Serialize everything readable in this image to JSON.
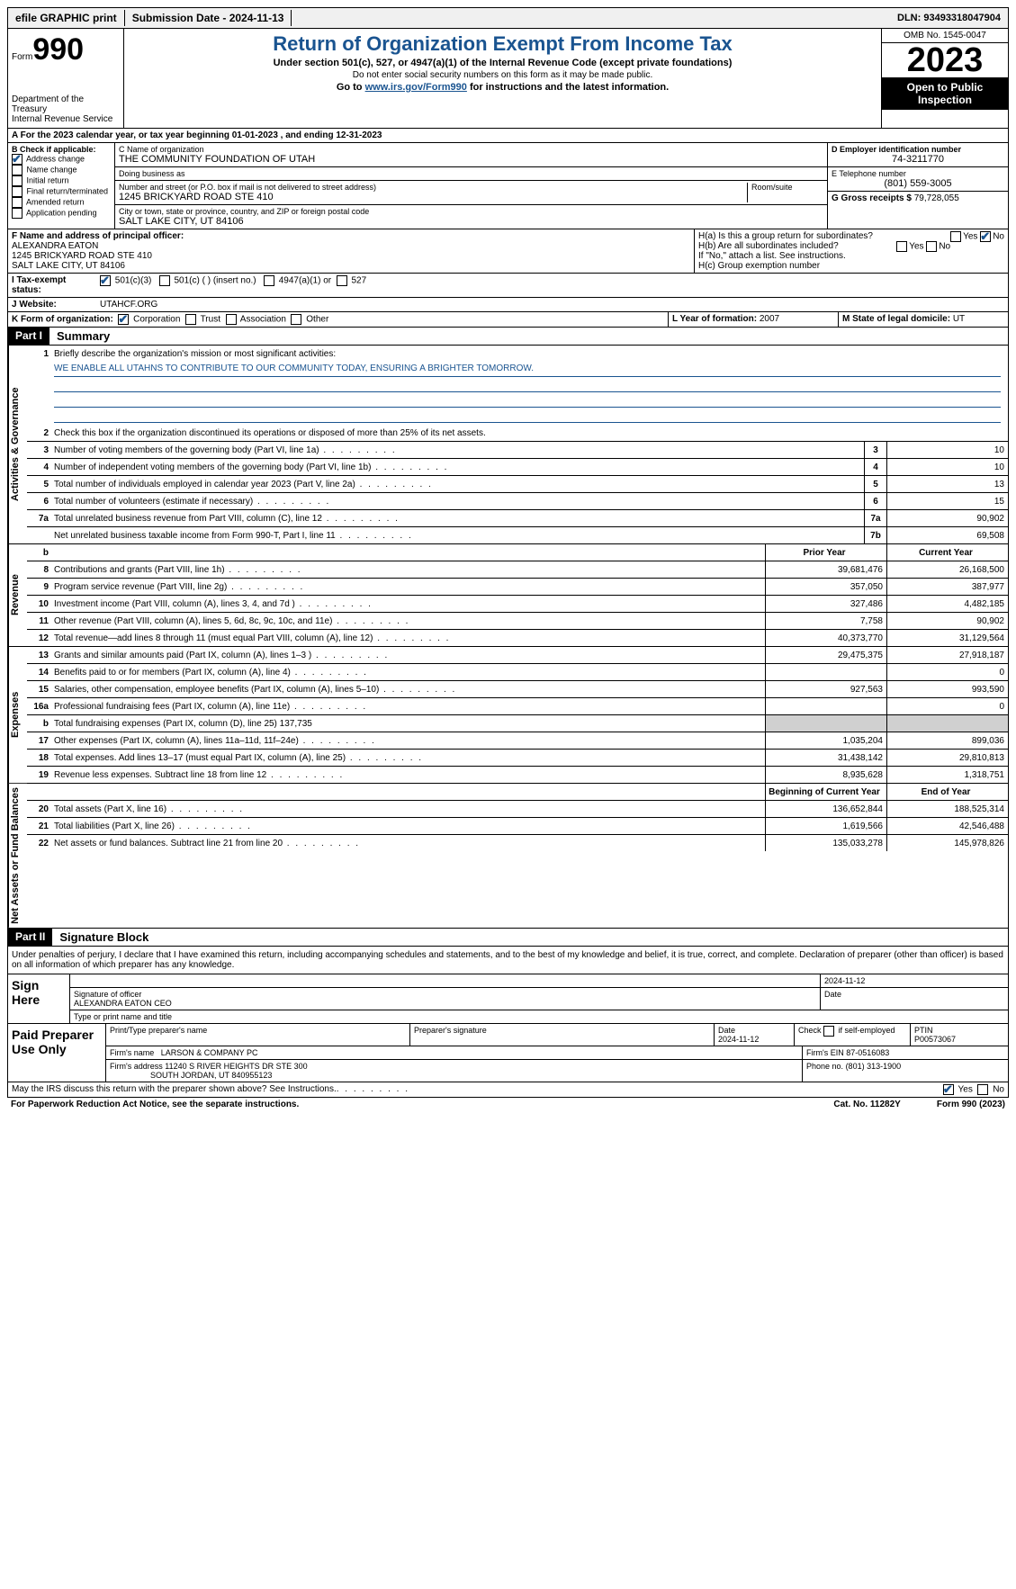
{
  "topbar": {
    "efile": "efile GRAPHIC print",
    "submission": "Submission Date - 2024-11-13",
    "dln": "DLN: 93493318047904"
  },
  "header": {
    "form_label": "Form",
    "form_number": "990",
    "dept": "Department of the Treasury",
    "irs": "Internal Revenue Service",
    "title": "Return of Organization Exempt From Income Tax",
    "sub1": "Under section 501(c), 527, or 4947(a)(1) of the Internal Revenue Code (except private foundations)",
    "sub2": "Do not enter social security numbers on this form as it may be made public.",
    "sub3_pre": "Go to ",
    "sub3_link": "www.irs.gov/Form990",
    "sub3_post": " for instructions and the latest information.",
    "omb": "OMB No. 1545-0047",
    "year": "2023",
    "open": "Open to Public Inspection"
  },
  "line_a": "For the 2023 calendar year, or tax year beginning 01-01-2023   , and ending 12-31-2023",
  "section_b": {
    "label": "B Check if applicable:",
    "items": [
      "Address change",
      "Name change",
      "Initial return",
      "Final return/terminated",
      "Amended return",
      "Application pending"
    ],
    "checked": [
      true,
      false,
      false,
      false,
      false,
      false
    ]
  },
  "section_c": {
    "name_label": "C Name of organization",
    "name": "THE COMMUNITY FOUNDATION OF UTAH",
    "dba_label": "Doing business as",
    "dba": "",
    "street_label": "Number and street (or P.O. box if mail is not delivered to street address)",
    "street": "1245 BRICKYARD ROAD STE 410",
    "room_label": "Room/suite",
    "city_label": "City or town, state or province, country, and ZIP or foreign postal code",
    "city": "SALT LAKE CITY, UT  84106"
  },
  "section_d": {
    "ein_label": "D Employer identification number",
    "ein": "74-3211770",
    "phone_label": "E Telephone number",
    "phone": "(801) 559-3005",
    "gross_label": "G Gross receipts $",
    "gross": "79,728,055"
  },
  "section_f": {
    "label": "F  Name and address of principal officer:",
    "name": "ALEXANDRA EATON",
    "addr1": "1245 BRICKYARD ROAD STE 410",
    "addr2": "SALT LAKE CITY, UT  84106"
  },
  "section_h": {
    "ha": "H(a)  Is this a group return for subordinates?",
    "hb": "H(b)  Are all subordinates included?",
    "hb_note": "If \"No,\" attach a list. See instructions.",
    "hc": "H(c)  Group exemption number"
  },
  "section_i": {
    "label": "I   Tax-exempt status:",
    "opts": [
      "501(c)(3)",
      "501(c) (  ) (insert no.)",
      "4947(a)(1) or",
      "527"
    ]
  },
  "section_j": {
    "label": "J   Website:",
    "value": "UTAHCF.ORG"
  },
  "section_k": {
    "label": "K Form of organization:",
    "opts": [
      "Corporation",
      "Trust",
      "Association",
      "Other"
    ]
  },
  "section_l": {
    "label": "L Year of formation:",
    "value": "2007"
  },
  "section_m": {
    "label": "M State of legal domicile:",
    "value": "UT"
  },
  "part1": {
    "label": "Part I",
    "title": "Summary",
    "mission_label": "Briefly describe the organization's mission or most significant activities:",
    "mission": "WE ENABLE ALL UTAHNS TO CONTRIBUTE TO OUR COMMUNITY TODAY, ENSURING A BRIGHTER TOMORROW.",
    "line2": "Check this box       if the organization discontinued its operations or disposed of more than 25% of its net assets.",
    "governance_label": "Activities & Governance",
    "revenue_label": "Revenue",
    "expenses_label": "Expenses",
    "netassets_label": "Net Assets or Fund Balances",
    "rows_gov": [
      {
        "n": "3",
        "d": "Number of voting members of the governing body (Part VI, line 1a)",
        "box": "3",
        "v": "10"
      },
      {
        "n": "4",
        "d": "Number of independent voting members of the governing body (Part VI, line 1b)",
        "box": "4",
        "v": "10"
      },
      {
        "n": "5",
        "d": "Total number of individuals employed in calendar year 2023 (Part V, line 2a)",
        "box": "5",
        "v": "13"
      },
      {
        "n": "6",
        "d": "Total number of volunteers (estimate if necessary)",
        "box": "6",
        "v": "15"
      },
      {
        "n": "7a",
        "d": "Total unrelated business revenue from Part VIII, column (C), line 12",
        "box": "7a",
        "v": "90,902"
      },
      {
        "n": "",
        "d": "Net unrelated business taxable income from Form 990-T, Part I, line 11",
        "box": "7b",
        "v": "69,508"
      }
    ],
    "col_headers": {
      "b": "b",
      "py": "Prior Year",
      "cy": "Current Year"
    },
    "rows_rev": [
      {
        "n": "8",
        "d": "Contributions and grants (Part VIII, line 1h)",
        "c1": "39,681,476",
        "c2": "26,168,500"
      },
      {
        "n": "9",
        "d": "Program service revenue (Part VIII, line 2g)",
        "c1": "357,050",
        "c2": "387,977"
      },
      {
        "n": "10",
        "d": "Investment income (Part VIII, column (A), lines 3, 4, and 7d )",
        "c1": "327,486",
        "c2": "4,482,185"
      },
      {
        "n": "11",
        "d": "Other revenue (Part VIII, column (A), lines 5, 6d, 8c, 9c, 10c, and 11e)",
        "c1": "7,758",
        "c2": "90,902"
      },
      {
        "n": "12",
        "d": "Total revenue—add lines 8 through 11 (must equal Part VIII, column (A), line 12)",
        "c1": "40,373,770",
        "c2": "31,129,564"
      }
    ],
    "rows_exp": [
      {
        "n": "13",
        "d": "Grants and similar amounts paid (Part IX, column (A), lines 1–3 )",
        "c1": "29,475,375",
        "c2": "27,918,187"
      },
      {
        "n": "14",
        "d": "Benefits paid to or for members (Part IX, column (A), line 4)",
        "c1": "",
        "c2": "0"
      },
      {
        "n": "15",
        "d": "Salaries, other compensation, employee benefits (Part IX, column (A), lines 5–10)",
        "c1": "927,563",
        "c2": "993,590"
      },
      {
        "n": "16a",
        "d": "Professional fundraising fees (Part IX, column (A), line 11e)",
        "c1": "",
        "c2": "0"
      },
      {
        "n": "b",
        "d": "Total fundraising expenses (Part IX, column (D), line 25) 137,735",
        "c1": "",
        "c2": "",
        "shaded": true
      },
      {
        "n": "17",
        "d": "Other expenses (Part IX, column (A), lines 11a–11d, 11f–24e)",
        "c1": "1,035,204",
        "c2": "899,036"
      },
      {
        "n": "18",
        "d": "Total expenses. Add lines 13–17 (must equal Part IX, column (A), line 25)",
        "c1": "31,438,142",
        "c2": "29,810,813"
      },
      {
        "n": "19",
        "d": "Revenue less expenses. Subtract line 18 from line 12",
        "c1": "8,935,628",
        "c2": "1,318,751"
      }
    ],
    "col_headers2": {
      "py": "Beginning of Current Year",
      "cy": "End of Year"
    },
    "rows_net": [
      {
        "n": "20",
        "d": "Total assets (Part X, line 16)",
        "c1": "136,652,844",
        "c2": "188,525,314"
      },
      {
        "n": "21",
        "d": "Total liabilities (Part X, line 26)",
        "c1": "1,619,566",
        "c2": "42,546,488"
      },
      {
        "n": "22",
        "d": "Net assets or fund balances. Subtract line 21 from line 20",
        "c1": "135,033,278",
        "c2": "145,978,826"
      }
    ]
  },
  "part2": {
    "label": "Part II",
    "title": "Signature Block",
    "declaration": "Under penalties of perjury, I declare that I have examined this return, including accompanying schedules and statements, and to the best of my knowledge and belief, it is true, correct, and complete. Declaration of preparer (other than officer) is based on all information of which preparer has any knowledge.",
    "sign_here": "Sign Here",
    "sig_date": "2024-11-12",
    "officer_sig_label": "Signature of officer",
    "officer_name": "ALEXANDRA EATON CEO",
    "officer_title_label": "Type or print name and title",
    "date_label": "Date",
    "paid": "Paid Preparer Use Only",
    "prep_name_label": "Print/Type preparer's name",
    "prep_sig_label": "Preparer's signature",
    "prep_date": "2024-11-12",
    "self_emp": "Check        if self-employed",
    "ptin_label": "PTIN",
    "ptin": "P00573067",
    "firm_name_label": "Firm's name",
    "firm_name": "LARSON & COMPANY PC",
    "firm_ein_label": "Firm's EIN",
    "firm_ein": "87-0516083",
    "firm_addr_label": "Firm's address",
    "firm_addr1": "11240 S RIVER HEIGHTS DR STE 300",
    "firm_addr2": "SOUTH JORDAN, UT  840955123",
    "firm_phone_label": "Phone no.",
    "firm_phone": "(801) 313-1900",
    "discuss": "May the IRS discuss this return with the preparer shown above? See Instructions.",
    "yes": "Yes",
    "no": "No"
  },
  "footer": {
    "pra": "For Paperwork Reduction Act Notice, see the separate instructions.",
    "cat": "Cat. No. 11282Y",
    "form": "Form 990 (2023)"
  }
}
